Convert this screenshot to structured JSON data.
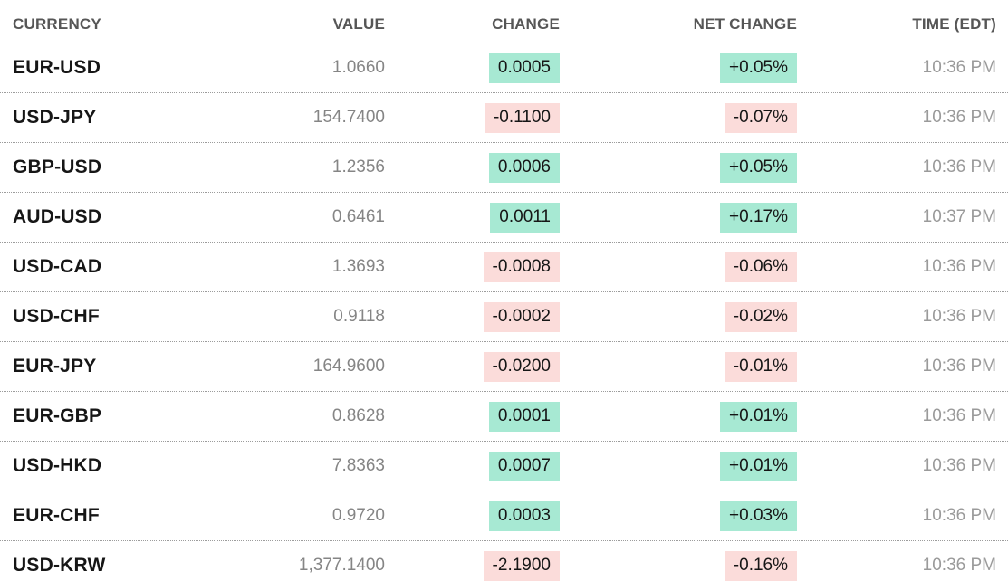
{
  "colors": {
    "positive_bg": "#a7e9d3",
    "negative_bg": "#fbdcda",
    "row_text": "#161616",
    "muted_text": "#858585",
    "time_text": "#9a9a9a",
    "header_text": "#565656",
    "separator": "#9c9c9c",
    "bottom_bar": "#303040"
  },
  "table": {
    "columns": [
      {
        "label": "CURRENCY"
      },
      {
        "label": "VALUE"
      },
      {
        "label": "CHANGE"
      },
      {
        "label": "NET CHANGE"
      },
      {
        "label": "TIME (EDT)"
      }
    ],
    "rows": [
      {
        "currency": "EUR-USD",
        "value": "1.0660",
        "change": "0.0005",
        "net_change": "+0.05%",
        "time": "10:36 PM",
        "direction": "up"
      },
      {
        "currency": "USD-JPY",
        "value": "154.7400",
        "change": "-0.1100",
        "net_change": "-0.07%",
        "time": "10:36 PM",
        "direction": "down"
      },
      {
        "currency": "GBP-USD",
        "value": "1.2356",
        "change": "0.0006",
        "net_change": "+0.05%",
        "time": "10:36 PM",
        "direction": "up"
      },
      {
        "currency": "AUD-USD",
        "value": "0.6461",
        "change": "0.0011",
        "net_change": "+0.17%",
        "time": "10:37 PM",
        "direction": "up"
      },
      {
        "currency": "USD-CAD",
        "value": "1.3693",
        "change": "-0.0008",
        "net_change": "-0.06%",
        "time": "10:36 PM",
        "direction": "down"
      },
      {
        "currency": "USD-CHF",
        "value": "0.9118",
        "change": "-0.0002",
        "net_change": "-0.02%",
        "time": "10:36 PM",
        "direction": "down"
      },
      {
        "currency": "EUR-JPY",
        "value": "164.9600",
        "change": "-0.0200",
        "net_change": "-0.01%",
        "time": "10:36 PM",
        "direction": "down"
      },
      {
        "currency": "EUR-GBP",
        "value": "0.8628",
        "change": "0.0001",
        "net_change": "+0.01%",
        "time": "10:36 PM",
        "direction": "up"
      },
      {
        "currency": "USD-HKD",
        "value": "7.8363",
        "change": "0.0007",
        "net_change": "+0.01%",
        "time": "10:36 PM",
        "direction": "up"
      },
      {
        "currency": "EUR-CHF",
        "value": "0.9720",
        "change": "0.0003",
        "net_change": "+0.03%",
        "time": "10:36 PM",
        "direction": "up"
      },
      {
        "currency": "USD-KRW",
        "value": "1,377.1400",
        "change": "-2.1900",
        "net_change": "-0.16%",
        "time": "10:36 PM",
        "direction": "down"
      }
    ]
  }
}
